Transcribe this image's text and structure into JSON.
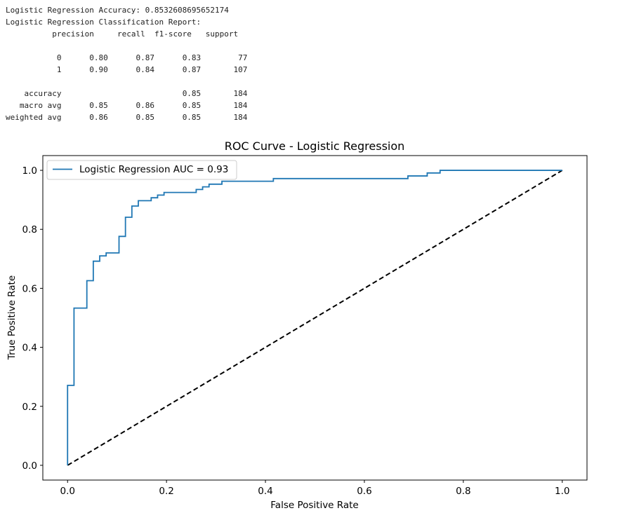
{
  "console": {
    "accuracy_line": "Logistic Regression Accuracy: 0.8532608695652174",
    "report_title": "Logistic Regression Classification Report:",
    "header": [
      "precision",
      "recall",
      "f1-score",
      "support"
    ],
    "rows": [
      {
        "label": "0",
        "precision": "0.80",
        "recall": "0.87",
        "f1": "0.83",
        "support": "77"
      },
      {
        "label": "1",
        "precision": "0.90",
        "recall": "0.84",
        "f1": "0.87",
        "support": "107"
      },
      {
        "label": "accuracy",
        "precision": "",
        "recall": "",
        "f1": "0.85",
        "support": "184"
      },
      {
        "label": "macro avg",
        "precision": "0.85",
        "recall": "0.86",
        "f1": "0.85",
        "support": "184"
      },
      {
        "label": "weighted avg",
        "precision": "0.86",
        "recall": "0.85",
        "f1": "0.85",
        "support": "184"
      }
    ]
  },
  "chart_data": {
    "type": "line",
    "title": "ROC Curve - Logistic Regression",
    "xlabel": "False Positive Rate",
    "ylabel": "True Positive Rate",
    "xlim": [
      -0.05,
      1.05
    ],
    "ylim": [
      -0.05,
      1.05
    ],
    "xticks": [
      "0.0",
      "0.2",
      "0.4",
      "0.6",
      "0.8",
      "1.0"
    ],
    "yticks": [
      "0.0",
      "0.2",
      "0.4",
      "0.6",
      "0.8",
      "1.0"
    ],
    "legend_position": "top-left",
    "grid": false,
    "series": [
      {
        "name": "Logistic Regression AUC = 0.93",
        "color": "#1f77b4",
        "style": "solid",
        "x": [
          0.0,
          0.0,
          0.013,
          0.013,
          0.039,
          0.039,
          0.052,
          0.052,
          0.065,
          0.065,
          0.078,
          0.078,
          0.104,
          0.104,
          0.117,
          0.117,
          0.13,
          0.13,
          0.143,
          0.143,
          0.169,
          0.169,
          0.182,
          0.182,
          0.195,
          0.195,
          0.26,
          0.26,
          0.273,
          0.273,
          0.286,
          0.286,
          0.312,
          0.312,
          0.416,
          0.416,
          0.688,
          0.688,
          0.727,
          0.727,
          0.753,
          0.753,
          1.0
        ],
        "y": [
          0.0,
          0.271,
          0.271,
          0.533,
          0.533,
          0.626,
          0.626,
          0.692,
          0.692,
          0.71,
          0.71,
          0.72,
          0.72,
          0.776,
          0.776,
          0.841,
          0.841,
          0.879,
          0.879,
          0.897,
          0.897,
          0.907,
          0.907,
          0.916,
          0.916,
          0.925,
          0.925,
          0.935,
          0.935,
          0.944,
          0.944,
          0.953,
          0.953,
          0.963,
          0.963,
          0.972,
          0.972,
          0.981,
          0.981,
          0.991,
          0.991,
          1.0,
          1.0
        ]
      },
      {
        "name": "",
        "color": "#000000",
        "style": "dashed",
        "x": [
          0.0,
          1.0
        ],
        "y": [
          0.0,
          1.0
        ]
      }
    ]
  }
}
